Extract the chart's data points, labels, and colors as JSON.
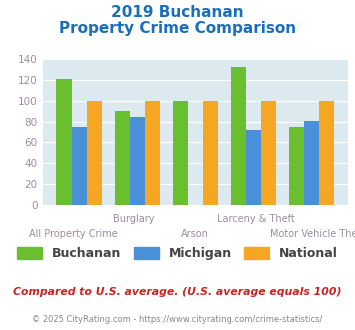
{
  "title_line1": "2019 Buchanan",
  "title_line2": "Property Crime Comparison",
  "categories": [
    "All Property Crime",
    "Burglary",
    "Arson",
    "Larceny & Theft",
    "Motor Vehicle Theft"
  ],
  "buchanan": [
    121,
    90,
    100,
    133,
    75
  ],
  "michigan": [
    75,
    84,
    0,
    72,
    81
  ],
  "national": [
    100,
    100,
    100,
    100,
    100
  ],
  "colors": {
    "buchanan": "#6abf2e",
    "michigan": "#4a90d9",
    "national": "#f5a623"
  },
  "ylim": [
    0,
    140
  ],
  "yticks": [
    0,
    20,
    40,
    60,
    80,
    100,
    120,
    140
  ],
  "title_color": "#1a6fbd",
  "xlabel_color": "#9b8ea0",
  "legend_label_color": "#444444",
  "bg_color": "#dce9ef",
  "row1_labels": {
    "1": "Burglary",
    "3": "Larceny & Theft"
  },
  "row2_labels": {
    "0": "All Property Crime",
    "2": "Arson",
    "4": "Motor Vehicle Theft"
  },
  "footer_text1": "Compared to U.S. average. (U.S. average equals 100)",
  "footer_text2": "© 2025 CityRating.com - https://www.cityrating.com/crime-statistics/",
  "footer_color1": "#cc2222",
  "footer_color2": "#888888"
}
